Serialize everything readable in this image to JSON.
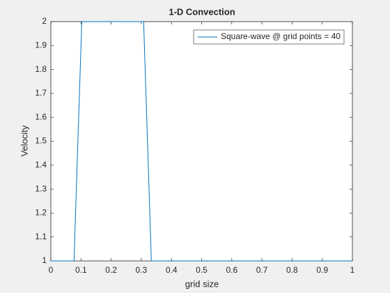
{
  "chart_data": {
    "type": "line",
    "title": "1-D Convection",
    "x_label": "grid size",
    "y_label": "Velocity",
    "x": [
      0,
      0.0256,
      0.0513,
      0.0769,
      0.1026,
      0.1282,
      0.1538,
      0.1795,
      0.2051,
      0.2308,
      0.2564,
      0.2821,
      0.3077,
      0.3333,
      0.359,
      0.3846,
      0.4103,
      0.4359,
      0.4615,
      0.4872,
      0.5128,
      0.5385,
      0.5641,
      0.5897,
      0.6154,
      0.641,
      0.6667,
      0.6923,
      0.7179,
      0.7436,
      0.7692,
      0.7949,
      0.8205,
      0.8462,
      0.8718,
      0.8974,
      0.9231,
      0.9487,
      0.9744,
      1
    ],
    "series": [
      {
        "name": "Square-wave @ grid points = 40",
        "color": "#0072bd",
        "values": [
          1,
          1,
          1,
          1,
          2,
          2,
          2,
          2,
          2,
          2,
          2,
          2,
          2,
          1,
          1,
          1,
          1,
          1,
          1,
          1,
          1,
          1,
          1,
          1,
          1,
          1,
          1,
          1,
          1,
          1,
          1,
          1,
          1,
          1,
          1,
          1,
          1,
          1,
          1,
          1
        ]
      }
    ],
    "xlim": [
      0,
      1
    ],
    "xticks": [
      0,
      0.1,
      0.2,
      0.3,
      0.4,
      0.5,
      0.6,
      0.7,
      0.8,
      0.9,
      1
    ],
    "ylim": [
      1,
      2
    ],
    "yticks": [
      1,
      1.1,
      1.2,
      1.3,
      1.4,
      1.5,
      1.6,
      1.7,
      1.8,
      1.9,
      2
    ],
    "legend": "top-right"
  }
}
